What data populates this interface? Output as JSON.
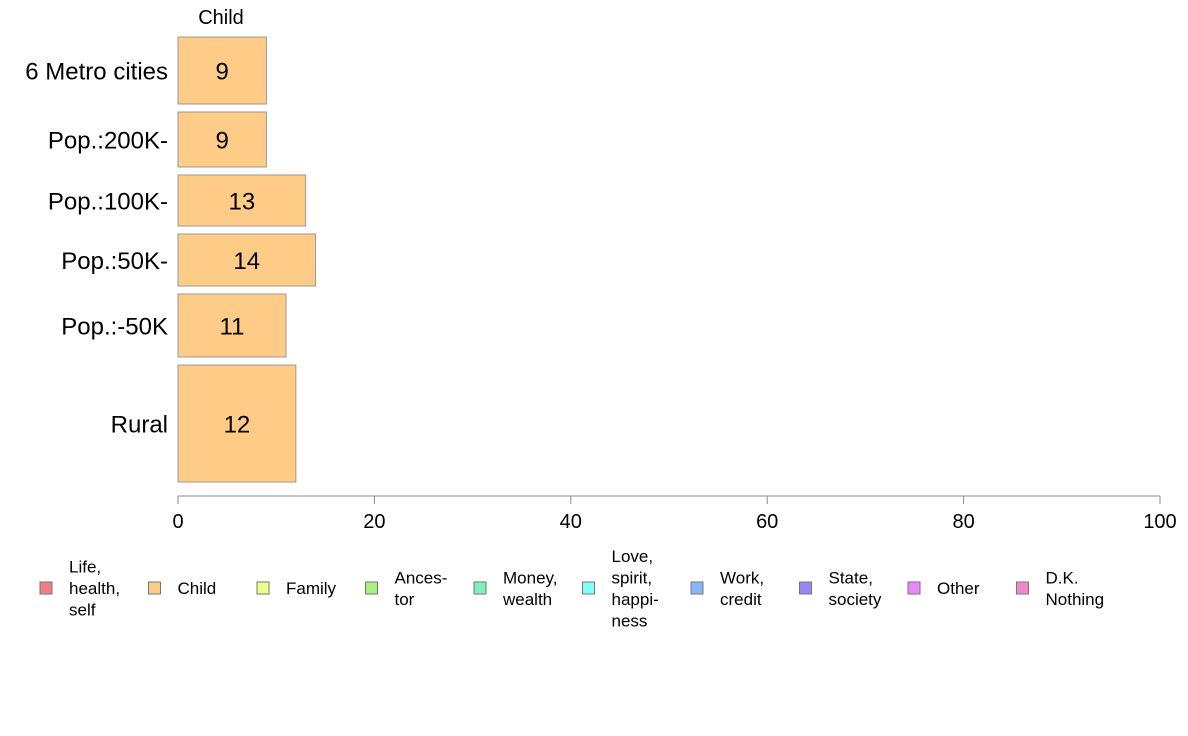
{
  "chart_data": {
    "type": "bar",
    "orientation": "horizontal",
    "header": "Child",
    "categories": [
      "6 Metro cities",
      "Pop.:200K-",
      "Pop.:100K-",
      "Pop.:50K-",
      "Pop.:-50K",
      "Rural"
    ],
    "series": [
      {
        "name": "Child",
        "color": "#FFCC88",
        "values": [
          9,
          9,
          13,
          14,
          11,
          12
        ]
      }
    ],
    "value_labels": [
      "9",
      "9",
      "13",
      "14",
      "11",
      "12"
    ],
    "xlim": [
      0,
      100
    ],
    "x_ticks": [
      0,
      20,
      40,
      60,
      80,
      100
    ],
    "x_tick_labels": [
      "0",
      "20",
      "40",
      "60",
      "80",
      "100"
    ],
    "grid": false,
    "legend_position": "bottom",
    "legend": [
      {
        "lines": [
          "Life,",
          "health,",
          "self"
        ],
        "color": "#F08080"
      },
      {
        "lines": [
          "Child"
        ],
        "color": "#FFCC88"
      },
      {
        "lines": [
          "Family"
        ],
        "color": "#EEFF88"
      },
      {
        "lines": [
          "Ances-",
          "tor"
        ],
        "color": "#A8F080"
      },
      {
        "lines": [
          "Money,",
          "wealth"
        ],
        "color": "#80F0B8"
      },
      {
        "lines": [
          "Love,",
          "spirit,",
          "happi-",
          "ness"
        ],
        "color": "#80FFFF"
      },
      {
        "lines": [
          "Work,",
          "credit"
        ],
        "color": "#88B8F8"
      },
      {
        "lines": [
          "State,",
          "society"
        ],
        "color": "#9988F0"
      },
      {
        "lines": [
          "Other"
        ],
        "color": "#E888F8"
      },
      {
        "lines": [
          "D.K.",
          "Nothing"
        ],
        "color": "#F088C8"
      }
    ]
  }
}
